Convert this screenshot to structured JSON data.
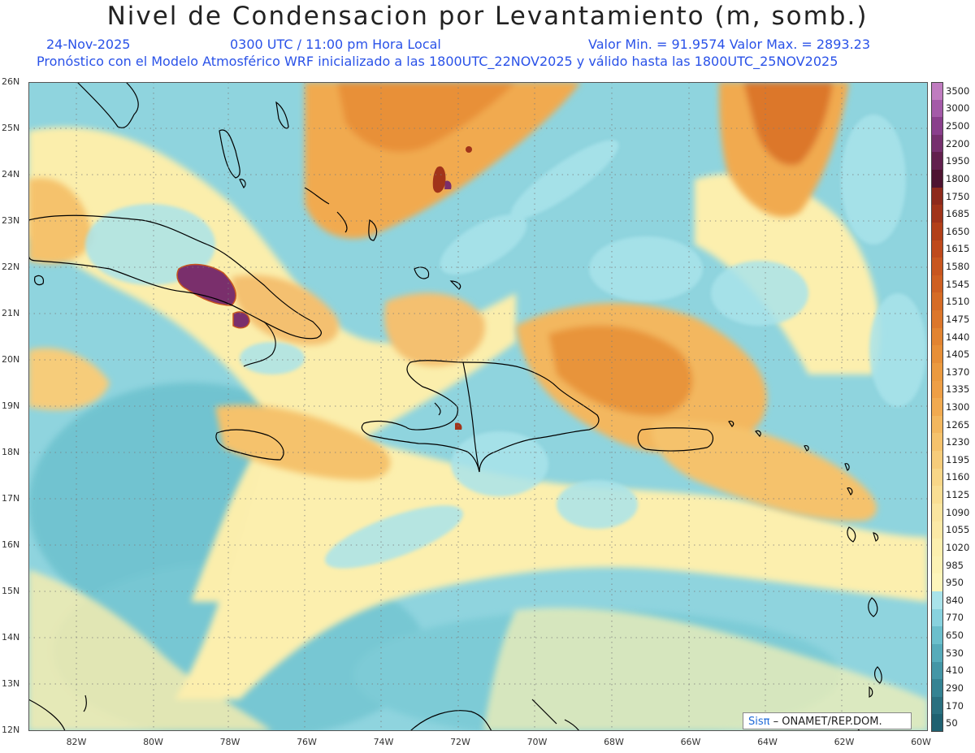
{
  "header": {
    "title": "Nivel de Condensacion por Levantamiento (m, somb.)",
    "date": "24-Nov-2025",
    "time": "0300 UTC / 11:00 pm Hora Local",
    "minmax": "Valor Min. = 91.9574  Valor Max. = 2893.23",
    "description": "Pronóstico con el Modelo Atmosférico WRF inicializado a las 1800UTC_22NOV2025 y válido hasta las  1800UTC_25NOV2025"
  },
  "axes": {
    "lat_labels": [
      "26N",
      "25N",
      "24N",
      "23N",
      "22N",
      "21N",
      "20N",
      "19N",
      "18N",
      "17N",
      "16N",
      "15N",
      "14N",
      "13N",
      "12N"
    ],
    "lon_labels": [
      "82W",
      "80W",
      "78W",
      "76W",
      "74W",
      "72W",
      "70W",
      "68W",
      "66W",
      "64W",
      "62W",
      "60W"
    ]
  },
  "colorbar": {
    "labels": [
      "3500",
      "3000",
      "2500",
      "2200",
      "1950",
      "1800",
      "1750",
      "1685",
      "1650",
      "1615",
      "1580",
      "1545",
      "1510",
      "1475",
      "1440",
      "1405",
      "1370",
      "1335",
      "1300",
      "1265",
      "1230",
      "1195",
      "1160",
      "1125",
      "1090",
      "1055",
      "1020",
      "985",
      "950",
      "840",
      "770",
      "650",
      "530",
      "410",
      "290",
      "170",
      "50"
    ],
    "colors": [
      "#c07cc0",
      "#a45aa8",
      "#8a3f8c",
      "#76306e",
      "#62204e",
      "#4e1431",
      "#8e2a1c",
      "#a1341a",
      "#b24019",
      "#bf4a1c",
      "#c8561f",
      "#cf6022",
      "#d66c26",
      "#dc772b",
      "#e28431",
      "#e78f37",
      "#eb9a3f",
      "#ee9f46",
      "#f1aa50",
      "#f3b75e",
      "#f5c26c",
      "#f6cc7a",
      "#f8d687",
      "#f9de93",
      "#fae59f",
      "#fbe9a6",
      "#fcefae",
      "#fcf2b4",
      "#fdf5bb",
      "#a9e3ea",
      "#88d2de",
      "#6bbfcc",
      "#56abba",
      "#4496a6",
      "#358393",
      "#2a7080",
      "#1f6171"
    ]
  },
  "map": {
    "colors": {
      "ocean_teal": "#7ccbd6",
      "ocean_light": "#a3dde6",
      "yellow": "#fbeeac",
      "orange_light": "#f4c070",
      "orange": "#e8943a",
      "purple": "#7a2f6c"
    },
    "region": "Caribbean / Greater Antilles"
  },
  "credit": {
    "sis": "Sisπ",
    "org": "– ONAMET/REP.DOM."
  }
}
